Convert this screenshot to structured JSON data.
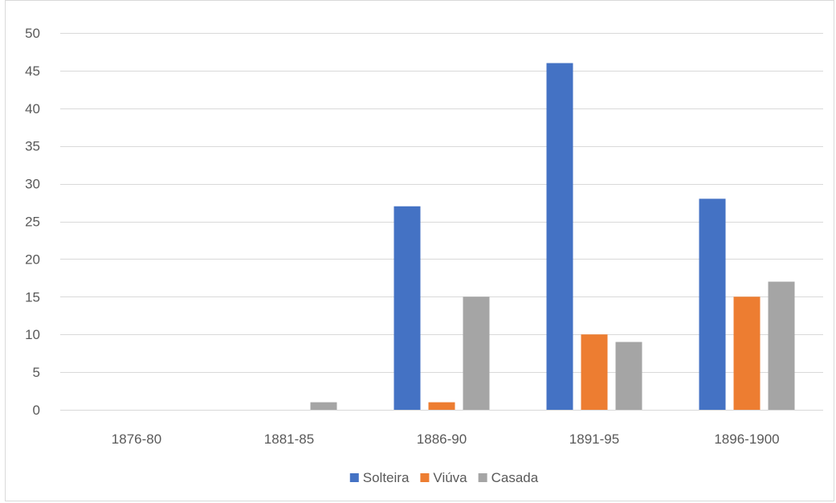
{
  "chart_data": {
    "type": "bar",
    "title": "",
    "xlabel": "",
    "ylabel": "",
    "categories": [
      "1876-80",
      "1881-85",
      "1886-90",
      "1891-95",
      "1896-1900"
    ],
    "series": [
      {
        "name": "Solteira",
        "color": "#4472c4",
        "values": [
          0,
          0,
          27,
          46,
          28
        ]
      },
      {
        "name": "Viúva",
        "color": "#ed7d31",
        "values": [
          0,
          0,
          1,
          10,
          15
        ]
      },
      {
        "name": "Casada",
        "color": "#a5a5a5",
        "values": [
          0,
          1,
          15,
          9,
          17
        ]
      }
    ],
    "ylim": [
      0,
      50
    ],
    "yticks": [
      0,
      5,
      10,
      15,
      20,
      25,
      30,
      35,
      40,
      45,
      50
    ],
    "grid": true,
    "legend_position": "bottom"
  }
}
